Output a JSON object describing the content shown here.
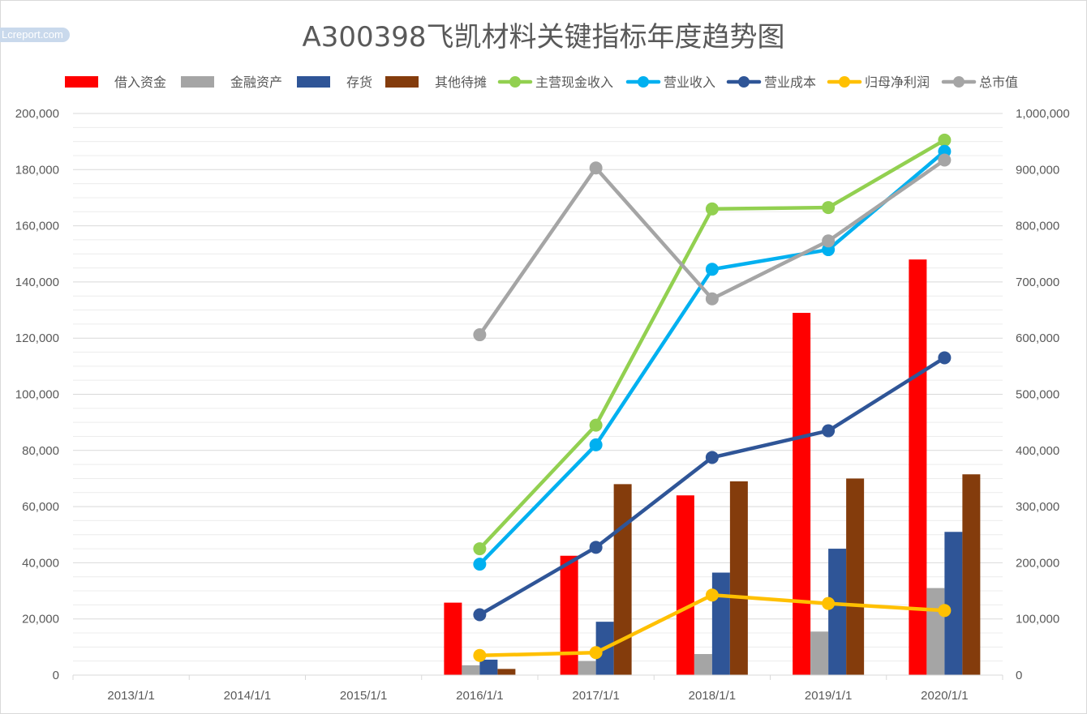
{
  "title": "A300398飞凯材料关键指标年度趋势图",
  "watermark": "Lcreport.com",
  "chart_data": {
    "type": "bar+line",
    "title": "A300398飞凯材料关键指标年度趋势图",
    "categories": [
      "2013/1/1",
      "2014/1/1",
      "2015/1/1",
      "2016/1/1",
      "2017/1/1",
      "2018/1/1",
      "2019/1/1",
      "2020/1/1"
    ],
    "y_left": {
      "min": 0,
      "max": 200000,
      "step": 20000,
      "tick_labels": [
        "0",
        "20,000",
        "40,000",
        "60,000",
        "80,000",
        "100,000",
        "120,000",
        "140,000",
        "160,000",
        "180,000",
        "200,000"
      ]
    },
    "y_right": {
      "min": 0,
      "max": 1000000,
      "step": 100000,
      "tick_labels": [
        "0",
        "100,000",
        "200,000",
        "300,000",
        "400,000",
        "500,000",
        "600,000",
        "700,000",
        "800,000",
        "900,000",
        "1,000,000"
      ]
    },
    "grid": true,
    "legend_position": "top",
    "bar_series": [
      {
        "name": "借入资金",
        "color": "#ff0000",
        "values": [
          null,
          null,
          null,
          25800,
          42500,
          64000,
          129000,
          148000
        ]
      },
      {
        "name": "金融资产",
        "color": "#a5a5a5",
        "values": [
          null,
          null,
          null,
          3500,
          5000,
          7500,
          15500,
          31000
        ]
      },
      {
        "name": "存货",
        "color": "#2f5597",
        "values": [
          null,
          null,
          null,
          5500,
          19000,
          36500,
          45000,
          51000
        ]
      },
      {
        "name": "其他待摊",
        "color": "#843c0c",
        "values": [
          null,
          null,
          null,
          2200,
          68000,
          69000,
          70000,
          71500
        ]
      }
    ],
    "line_series": [
      {
        "name": "主营现金收入",
        "color": "#92d050",
        "axis": "left",
        "values": [
          null,
          null,
          null,
          45000,
          89000,
          166000,
          166500,
          190500
        ]
      },
      {
        "name": "营业收入",
        "color": "#00b0f0",
        "axis": "left",
        "values": [
          null,
          null,
          null,
          39500,
          82000,
          144500,
          151500,
          186500
        ]
      },
      {
        "name": "营业成本",
        "color": "#2f5597",
        "axis": "left",
        "values": [
          null,
          null,
          null,
          21500,
          45500,
          77500,
          87000,
          113000
        ]
      },
      {
        "name": "归母净利润",
        "color": "#ffc000",
        "axis": "left",
        "values": [
          null,
          null,
          null,
          7000,
          8000,
          28500,
          25500,
          23000
        ]
      },
      {
        "name": "总市值",
        "color": "#a5a5a5",
        "axis": "right",
        "values": [
          null,
          null,
          null,
          606000,
          903000,
          670000,
          773000,
          917000
        ]
      }
    ]
  }
}
